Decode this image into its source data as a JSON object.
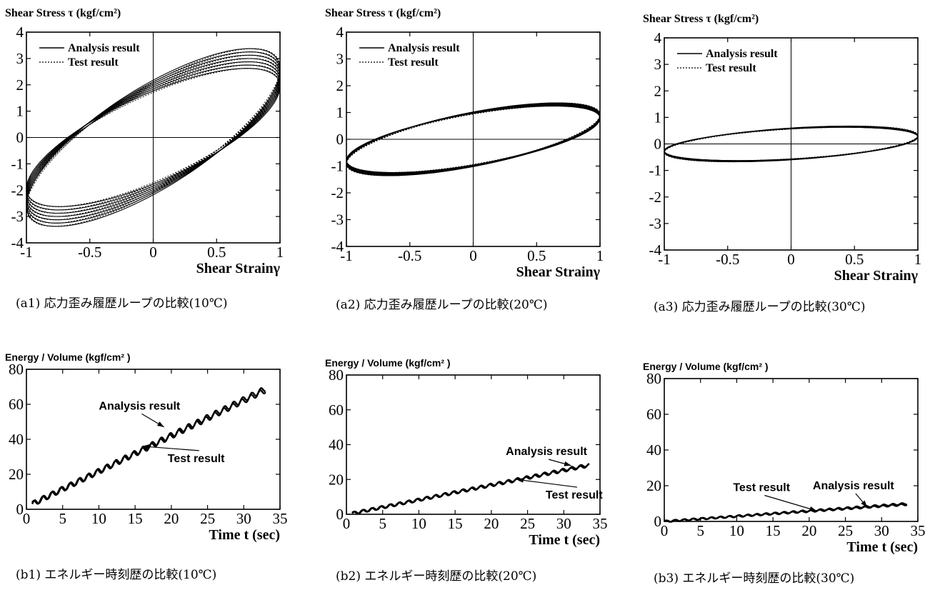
{
  "chart_data": [
    {
      "id": "a1",
      "type": "line",
      "panel": "hysteresis",
      "ylabel": "Shear Stress τ (kgf/cm²)",
      "xlabel": "Shear Strainγ",
      "xlim": [
        -1,
        1
      ],
      "ylim": [
        -4,
        4
      ],
      "xticks": [
        "-1",
        "-0.5",
        "0",
        "0.5",
        "1"
      ],
      "yticks": [
        "4",
        "3",
        "2",
        "1",
        "0",
        "-1",
        "-2",
        "-3",
        "-4"
      ],
      "legend": [
        "Analysis result",
        "Test result"
      ],
      "loop": {
        "amplitude_upper": 3.0,
        "amplitude_lower": 3.0,
        "phase": 0.85,
        "spread": 0.75
      },
      "caption": "(a1) 応力歪み履歴ループの比較(10℃)"
    },
    {
      "id": "a2",
      "type": "line",
      "panel": "hysteresis",
      "ylabel": "Shear Stress τ (kgf/cm²)",
      "xlabel": "Shear Strainγ",
      "xlim": [
        -1,
        1
      ],
      "ylim": [
        -4,
        4
      ],
      "xticks": [
        "-1",
        "-0.5",
        "0",
        "0.5",
        "1"
      ],
      "yticks": [
        "4",
        "3",
        "2",
        "1",
        "0",
        "-1",
        "-2",
        "-3",
        "-4"
      ],
      "legend": [
        "Analysis result",
        "Test result"
      ],
      "loop": {
        "amplitude_upper": 1.3,
        "amplitude_lower": 1.3,
        "phase": 0.7,
        "spread": 0.12
      },
      "caption": "(a2) 応力歪み履歴ループの比較(20℃)"
    },
    {
      "id": "a3",
      "type": "line",
      "panel": "hysteresis",
      "ylabel": "Shear Stress τ (kgf/cm²)",
      "xlabel": "Shear Strainγ",
      "xlim": [
        -1,
        1
      ],
      "ylim": [
        -4,
        4
      ],
      "xticks": [
        "-1",
        "-0.5",
        "0",
        "0.5",
        "1"
      ],
      "yticks": [
        "4",
        "3",
        "2",
        "1",
        "0",
        "-1",
        "-2",
        "-3",
        "-4"
      ],
      "legend": [
        "Analysis result",
        "Test result"
      ],
      "loop": {
        "amplitude_upper": 0.65,
        "amplitude_lower": 0.65,
        "phase": 0.45,
        "spread": 0.05
      },
      "caption": "(a3) 応力歪み履歴ループの比較(30℃)"
    },
    {
      "id": "b1",
      "type": "line",
      "panel": "energy",
      "ylabel": "Energy / Volume  (kgf/cm² )",
      "xlabel": "Time t (sec)",
      "xlim": [
        0,
        35
      ],
      "ylim": [
        0,
        80
      ],
      "xticks": [
        "0",
        "5",
        "10",
        "15",
        "20",
        "25",
        "30",
        "35"
      ],
      "yticks": [
        "80",
        "60",
        "40",
        "20",
        "0"
      ],
      "series": [
        {
          "name": "Analysis result",
          "x": [
            0.8,
            33
          ],
          "y": [
            3,
            69
          ]
        },
        {
          "name": "Test result",
          "x": [
            0.8,
            33
          ],
          "y": [
            3,
            68
          ]
        }
      ],
      "annotations": [
        {
          "text": "Analysis result",
          "x": 10,
          "y": 57,
          "arrow_to": [
            19,
            47
          ]
        },
        {
          "text": "Test result",
          "x": 19.5,
          "y": 27,
          "arrow_to": [
            16,
            36
          ]
        }
      ],
      "caption": "(b1) エネルギー時刻歴の比較(10℃)"
    },
    {
      "id": "b2",
      "type": "line",
      "panel": "energy",
      "ylabel": "Energy / Volume  (kgf/cm² )",
      "xlabel": "Time t (sec)",
      "xlim": [
        0,
        35
      ],
      "ylim": [
        0,
        80
      ],
      "xticks": [
        "0",
        "5",
        "10",
        "15",
        "20",
        "25",
        "30",
        "35"
      ],
      "yticks": [
        "80",
        "60",
        "40",
        "20",
        "0"
      ],
      "series": [
        {
          "name": "Analysis result",
          "x": [
            0.8,
            33.5
          ],
          "y": [
            0.5,
            28.5
          ]
        },
        {
          "name": "Test result",
          "x": [
            0.8,
            33.5
          ],
          "y": [
            0.5,
            28
          ]
        }
      ],
      "annotations": [
        {
          "text": "Analysis result",
          "x": 22,
          "y": 34,
          "arrow_to": [
            31,
            28
          ]
        },
        {
          "text": "Test result",
          "x": 27.5,
          "y": 9,
          "arrow_to": [
            23.5,
            20
          ]
        }
      ],
      "caption": "(b2) エネルギー時刻歴の比較(20℃)"
    },
    {
      "id": "b3",
      "type": "line",
      "panel": "energy",
      "ylabel": "Energy / Volume  (kgf/cm² )",
      "xlabel": "Time t (sec)",
      "xlim": [
        0,
        35
      ],
      "ylim": [
        0,
        80
      ],
      "xticks": [
        "0",
        "5",
        "10",
        "15",
        "20",
        "25",
        "30",
        "35"
      ],
      "yticks": [
        "80",
        "60",
        "40",
        "20",
        "0"
      ],
      "series": [
        {
          "name": "Analysis result",
          "x": [
            0,
            33.5
          ],
          "y": [
            0,
            10
          ]
        },
        {
          "name": "Test result",
          "x": [
            0,
            33.5
          ],
          "y": [
            0,
            9.5
          ]
        }
      ],
      "annotations": [
        {
          "text": "Test result",
          "x": 9.5,
          "y": 17,
          "arrow_to": [
            21,
            6
          ]
        },
        {
          "text": "Analysis result",
          "x": 20.5,
          "y": 18,
          "arrow_to": [
            28,
            8
          ]
        }
      ],
      "caption": "(b3) エネルギー時刻歴の比較(30℃)"
    }
  ]
}
